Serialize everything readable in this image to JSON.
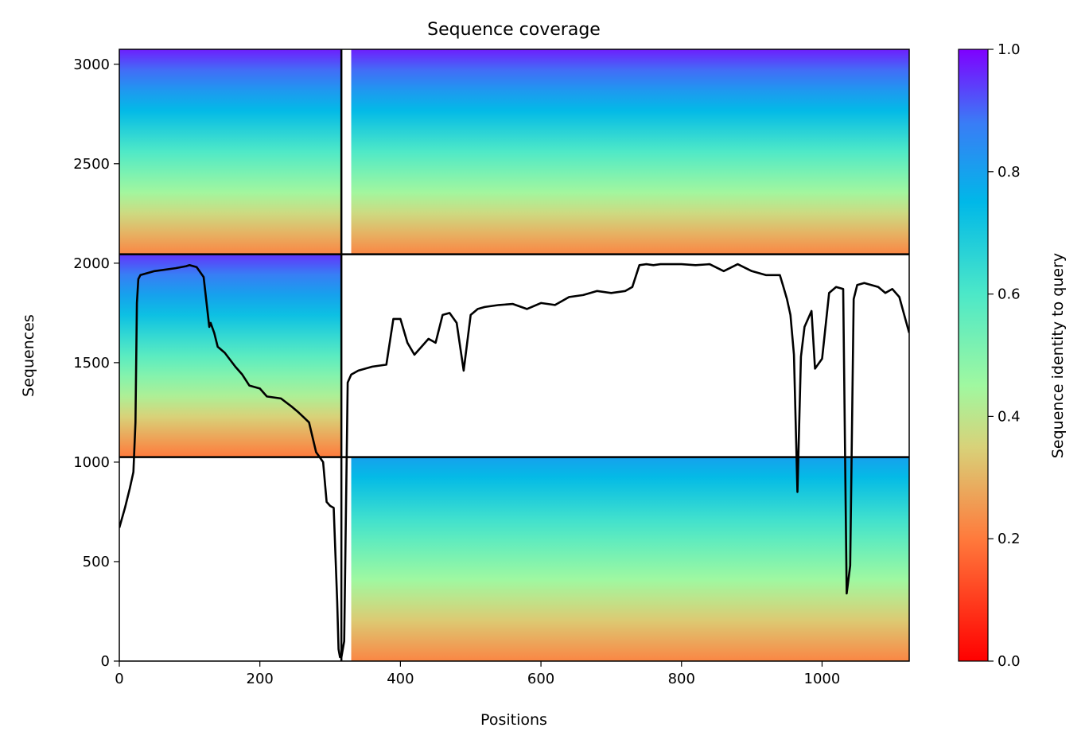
{
  "chart_data": {
    "type": "heatmap",
    "title": "Sequence coverage",
    "xlabel": "Positions",
    "ylabel": "Sequences",
    "colorbar_label": "Sequence identity to query",
    "xlim": [
      0,
      1124
    ],
    "ylim": [
      0,
      3075
    ],
    "x_ticks": [
      0,
      200,
      400,
      600,
      800,
      1000
    ],
    "y_ticks": [
      0,
      500,
      1000,
      1500,
      2000,
      2500,
      3000
    ],
    "colorbar_range": [
      0.0,
      1.0
    ],
    "colorbar_ticks": [
      0.0,
      0.2,
      0.4,
      0.6,
      0.8,
      1.0
    ],
    "colormap": "rainbow_r",
    "grid": false,
    "segment_boundaries": {
      "x": [
        316
      ],
      "y": [
        1025,
        2045
      ]
    },
    "msa_blocks": [
      {
        "name": "block-top-left",
        "x": [
          0,
          316
        ],
        "y": [
          2045,
          3075
        ],
        "identity_top": 0.97,
        "identity_bottom": 0.22
      },
      {
        "name": "block-top-right",
        "x": [
          330,
          1124
        ],
        "y": [
          2045,
          3075
        ],
        "identity_top": 0.97,
        "identity_bottom": 0.22
      },
      {
        "name": "block-mid-left",
        "x": [
          0,
          316
        ],
        "y": [
          1025,
          2045
        ],
        "identity_top": 0.95,
        "identity_bottom": 0.2
      },
      {
        "name": "block-bottom-right",
        "x": [
          330,
          1124
        ],
        "y": [
          0,
          1025
        ],
        "identity_top": 0.8,
        "identity_bottom": 0.22
      }
    ],
    "series": [
      {
        "name": "",
        "color": "#000000",
        "x": [
          0,
          8,
          15,
          20,
          23,
          25,
          27,
          30,
          50,
          80,
          95,
          100,
          110,
          120,
          128,
          130,
          135,
          140,
          150,
          165,
          175,
          185,
          200,
          210,
          230,
          245,
          255,
          270,
          280,
          290,
          295,
          300,
          305,
          310,
          312,
          314,
          316,
          320,
          325,
          330,
          340,
          350,
          360,
          380,
          390,
          400,
          410,
          420,
          430,
          440,
          450,
          460,
          470,
          480,
          490,
          500,
          510,
          520,
          540,
          560,
          580,
          600,
          620,
          640,
          660,
          680,
          700,
          720,
          730,
          740,
          750,
          760,
          770,
          780,
          800,
          820,
          840,
          860,
          880,
          900,
          920,
          930,
          940,
          945,
          950,
          955,
          960,
          965,
          970,
          975,
          985,
          990,
          1000,
          1010,
          1020,
          1030,
          1035,
          1040,
          1045,
          1050,
          1060,
          1070,
          1080,
          1090,
          1100,
          1110,
          1120,
          1124
        ],
        "y": [
          670,
          770,
          870,
          950,
          1200,
          1800,
          1920,
          1940,
          1960,
          1975,
          1985,
          1990,
          1980,
          1930,
          1680,
          1700,
          1650,
          1580,
          1550,
          1480,
          1440,
          1385,
          1370,
          1330,
          1320,
          1280,
          1250,
          1200,
          1050,
          1000,
          800,
          780,
          770,
          300,
          60,
          20,
          20,
          100,
          1400,
          1440,
          1460,
          1470,
          1480,
          1490,
          1720,
          1720,
          1600,
          1540,
          1580,
          1620,
          1600,
          1740,
          1750,
          1700,
          1460,
          1740,
          1770,
          1780,
          1790,
          1795,
          1770,
          1800,
          1790,
          1830,
          1840,
          1860,
          1850,
          1860,
          1880,
          1990,
          1995,
          1990,
          1995,
          1995,
          1995,
          1990,
          1995,
          1960,
          1995,
          1960,
          1940,
          1940,
          1940,
          1880,
          1820,
          1740,
          1540,
          850,
          1530,
          1680,
          1760,
          1470,
          1520,
          1850,
          1880,
          1870,
          340,
          480,
          1820,
          1890,
          1900,
          1890,
          1880,
          1850,
          1870,
          1830,
          1700,
          1650
        ]
      }
    ]
  }
}
